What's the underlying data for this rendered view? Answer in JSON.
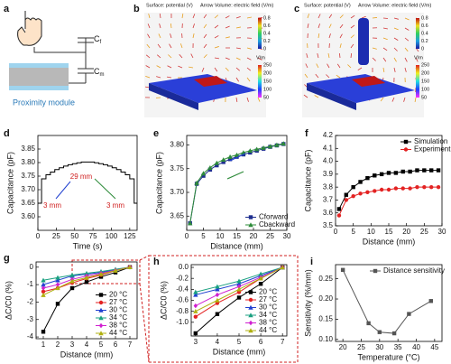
{
  "panel_labels": [
    "a",
    "b",
    "c",
    "d",
    "e",
    "f",
    "g",
    "h",
    "i"
  ],
  "schematic": {
    "finger_capacitor": {
      "symbol": "C",
      "subscript": "f"
    },
    "module_capacitor": {
      "symbol": "C",
      "subscript": "m"
    },
    "module_label": "Proximity module"
  },
  "simulations": [
    {
      "surface_title": "Surface: potential (V)",
      "arrow_title": "Arrow Volume: electric field (V/m)",
      "potential_ticks": [
        "0.8",
        "0.6",
        "0.4",
        "0.2",
        "0"
      ],
      "field_unit": "V/m",
      "field_ticks": [
        "250",
        "200",
        "150",
        "100",
        "50"
      ]
    },
    {
      "surface_title": "Surface: potential (V)",
      "arrow_title": "Arrow Volume: electric field (V/m)",
      "potential_ticks": [
        "0.8",
        "0.6",
        "0.4",
        "0.2",
        "0"
      ],
      "field_unit": "V/m",
      "field_ticks": [
        "250",
        "200",
        "150",
        "100",
        "50"
      ]
    }
  ],
  "chart_data": [
    {
      "type": "line",
      "x_label": "Time (s)",
      "y_label": "Capacitance (pF)",
      "xlim": [
        0,
        135
      ],
      "xticks": [
        0,
        25,
        50,
        75,
        100,
        125
      ],
      "ylim": [
        3.55,
        3.9
      ],
      "yticks": [
        {
          "value": 3.6,
          "label": "3.60"
        },
        {
          "value": 3.65,
          "label": "3.65"
        },
        {
          "value": 3.7,
          "label": "3.70"
        },
        {
          "value": 3.75,
          "label": "3.75"
        },
        {
          "value": 3.8,
          "label": "3.80"
        },
        {
          "value": 3.85,
          "label": "3.85"
        }
      ],
      "x": [
        0,
        5,
        5,
        11,
        11,
        17,
        17,
        23,
        23,
        29,
        29,
        35,
        35,
        41,
        41,
        47,
        47,
        53,
        53,
        59,
        59,
        77,
        77,
        83,
        83,
        89,
        89,
        95,
        95,
        101,
        101,
        107,
        107,
        113,
        113,
        119,
        119,
        125,
        125,
        131,
        131,
        135
      ],
      "series": [
        {
          "color": "#000000",
          "marker": "none",
          "values": [
            3.65,
            3.65,
            3.74,
            3.74,
            3.755,
            3.755,
            3.765,
            3.765,
            3.774,
            3.774,
            3.781,
            3.781,
            3.787,
            3.787,
            3.792,
            3.792,
            3.796,
            3.796,
            3.799,
            3.799,
            3.802,
            3.802,
            3.799,
            3.799,
            3.796,
            3.796,
            3.792,
            3.792,
            3.787,
            3.787,
            3.781,
            3.781,
            3.774,
            3.774,
            3.765,
            3.765,
            3.755,
            3.755,
            3.74,
            3.74,
            3.65,
            3.65
          ]
        }
      ],
      "annotations": [
        "29 mm",
        "3 mm",
        "3 mm"
      ]
    },
    {
      "type": "line",
      "x_label": "Distance (mm)",
      "y_label": "Capacitance (pF)",
      "xlim": [
        0,
        30
      ],
      "xticks": [
        0,
        5,
        10,
        15,
        20,
        25,
        30
      ],
      "ylim": [
        3.62,
        3.82
      ],
      "yticks": [
        {
          "value": 3.65,
          "label": "3.65"
        },
        {
          "value": 3.7,
          "label": "3.70"
        },
        {
          "value": 3.75,
          "label": "3.75"
        },
        {
          "value": 3.8,
          "label": "3.80"
        }
      ],
      "legend": "lower right",
      "x": [
        1,
        3,
        5,
        7,
        9,
        11,
        13,
        15,
        17,
        19,
        21,
        23,
        25,
        27,
        29
      ],
      "series": [
        {
          "name": "Cforward",
          "color": "#1f2f8f",
          "marker": "square",
          "values": [
            3.635,
            3.718,
            3.735,
            3.748,
            3.757,
            3.764,
            3.77,
            3.775,
            3.78,
            3.784,
            3.788,
            3.792,
            3.796,
            3.799,
            3.802
          ]
        },
        {
          "name": "Cbackward",
          "color": "#2e8b3a",
          "marker": "triangle",
          "values": [
            3.635,
            3.72,
            3.74,
            3.752,
            3.762,
            3.769,
            3.775,
            3.779,
            3.784,
            3.788,
            3.791,
            3.794,
            3.797,
            3.8,
            3.803
          ]
        }
      ]
    },
    {
      "type": "line",
      "x_label": "Distance (mm)",
      "y_label": "Capacitance (pF)",
      "xlim": [
        0,
        30
      ],
      "xticks": [
        0,
        5,
        10,
        15,
        20,
        25,
        30
      ],
      "ylim": [
        3.5,
        4.2
      ],
      "yticks": [
        3.5,
        3.6,
        3.7,
        3.8,
        3.9,
        {
          "value": 4,
          "label": "4.0"
        },
        4.1,
        4.2
      ],
      "legend": "upper right",
      "x": [
        1,
        3,
        5,
        7,
        9,
        11,
        13,
        15,
        17,
        19,
        21,
        23,
        25,
        27,
        29
      ],
      "series": [
        {
          "name": "Simulation",
          "color": "#000000",
          "marker": "square",
          "values": [
            3.63,
            3.74,
            3.8,
            3.84,
            3.87,
            3.89,
            3.9,
            3.91,
            3.91,
            3.92,
            3.92,
            3.93,
            3.93,
            3.93,
            3.93
          ]
        },
        {
          "name": "Experiment",
          "color": "#e32222",
          "marker": "circle",
          "values": [
            3.58,
            3.7,
            3.73,
            3.75,
            3.76,
            3.77,
            3.78,
            3.78,
            3.79,
            3.79,
            3.79,
            3.8,
            3.8,
            3.8,
            3.8
          ]
        }
      ]
    },
    {
      "type": "line",
      "x_label": "Distance (mm)",
      "y_label": "ΔC/C0 (%)",
      "xlim": [
        0.5,
        7.5
      ],
      "xticks": [
        1,
        2,
        3,
        4,
        5,
        6,
        7
      ],
      "ylim": [
        -4.1,
        0.3
      ],
      "yticks": [
        -4,
        -3,
        -2,
        -1,
        0
      ],
      "legend": "lower right",
      "x": [
        1,
        2,
        3,
        4,
        5,
        6,
        7
      ],
      "series": [
        {
          "name": "20 °C",
          "color": "#000000",
          "marker": "square",
          "values": [
            -3.7,
            -2.1,
            -1.2,
            -0.85,
            -0.55,
            -0.3,
            0
          ]
        },
        {
          "name": "27 °C",
          "color": "#e32222",
          "marker": "circle",
          "values": [
            -1.4,
            -1.2,
            -0.9,
            -0.65,
            -0.45,
            -0.2,
            0
          ]
        },
        {
          "name": "30 °C",
          "color": "#2040d0",
          "marker": "triangle",
          "values": [
            -1.0,
            -0.75,
            -0.5,
            -0.4,
            -0.3,
            -0.15,
            0
          ]
        },
        {
          "name": "34 °C",
          "color": "#1aa080",
          "marker": "triangle",
          "values": [
            -0.75,
            -0.6,
            -0.45,
            -0.35,
            -0.25,
            -0.12,
            0
          ]
        },
        {
          "name": "38 °C",
          "color": "#d020d0",
          "marker": "diamond",
          "values": [
            -1.2,
            -1.0,
            -0.7,
            -0.5,
            -0.35,
            -0.18,
            0
          ]
        },
        {
          "name": "44 °C",
          "color": "#b0b010",
          "marker": "triangle",
          "values": [
            -1.6,
            -1.2,
            -0.8,
            -0.6,
            -0.4,
            -0.2,
            0
          ]
        }
      ]
    },
    {
      "type": "line",
      "x_label": "Distance (mm)",
      "y_label": "ΔC/C0 (%)",
      "xlim": [
        2.8,
        7.2
      ],
      "xticks": [
        3,
        4,
        5,
        6,
        7
      ],
      "ylim": [
        -1.25,
        0.05
      ],
      "yticks": [
        {
          "value": -1,
          "label": "-1.0"
        },
        -0.8,
        -0.6,
        -0.4,
        -0.2,
        {
          "value": 0,
          "label": "0.0"
        }
      ],
      "legend": "lower right",
      "x": [
        3,
        4,
        5,
        6,
        7
      ],
      "series": [
        {
          "name": "20 °C",
          "color": "#000000",
          "marker": "square",
          "values": [
            -1.2,
            -0.85,
            -0.55,
            -0.3,
            0
          ]
        },
        {
          "name": "27 °C",
          "color": "#e32222",
          "marker": "circle",
          "values": [
            -0.9,
            -0.65,
            -0.45,
            -0.2,
            0
          ]
        },
        {
          "name": "30 °C",
          "color": "#2040d0",
          "marker": "triangle",
          "values": [
            -0.5,
            -0.4,
            -0.3,
            -0.15,
            0
          ]
        },
        {
          "name": "34 °C",
          "color": "#1aa080",
          "marker": "triangle",
          "values": [
            -0.45,
            -0.35,
            -0.25,
            -0.12,
            0
          ]
        },
        {
          "name": "38 °C",
          "color": "#d020d0",
          "marker": "diamond",
          "values": [
            -0.7,
            -0.5,
            -0.35,
            -0.18,
            0
          ]
        },
        {
          "name": "44 °C",
          "color": "#b0b010",
          "marker": "triangle",
          "values": [
            -0.8,
            -0.6,
            -0.4,
            -0.2,
            0
          ]
        }
      ]
    },
    {
      "type": "line",
      "x_label": "Temperature (°C)",
      "y_label": "Sensitivity (%/mm)",
      "xlim": [
        18,
        47
      ],
      "xticks": [
        20,
        25,
        30,
        35,
        40,
        45
      ],
      "ylim": [
        0.095,
        0.285
      ],
      "yticks": [
        {
          "value": 0.1,
          "label": "0.10"
        },
        {
          "value": 0.15,
          "label": "0.15"
        },
        {
          "value": 0.2,
          "label": "0.20"
        },
        {
          "value": 0.25,
          "label": "0.25"
        }
      ],
      "legend": "upper right",
      "x": [
        20,
        27,
        30,
        34,
        38,
        44
      ],
      "series": [
        {
          "name": "Distance sensitivity",
          "color": "#555555",
          "marker": "square",
          "values": [
            0.272,
            0.14,
            0.118,
            0.115,
            0.163,
            0.195
          ]
        }
      ]
    }
  ]
}
